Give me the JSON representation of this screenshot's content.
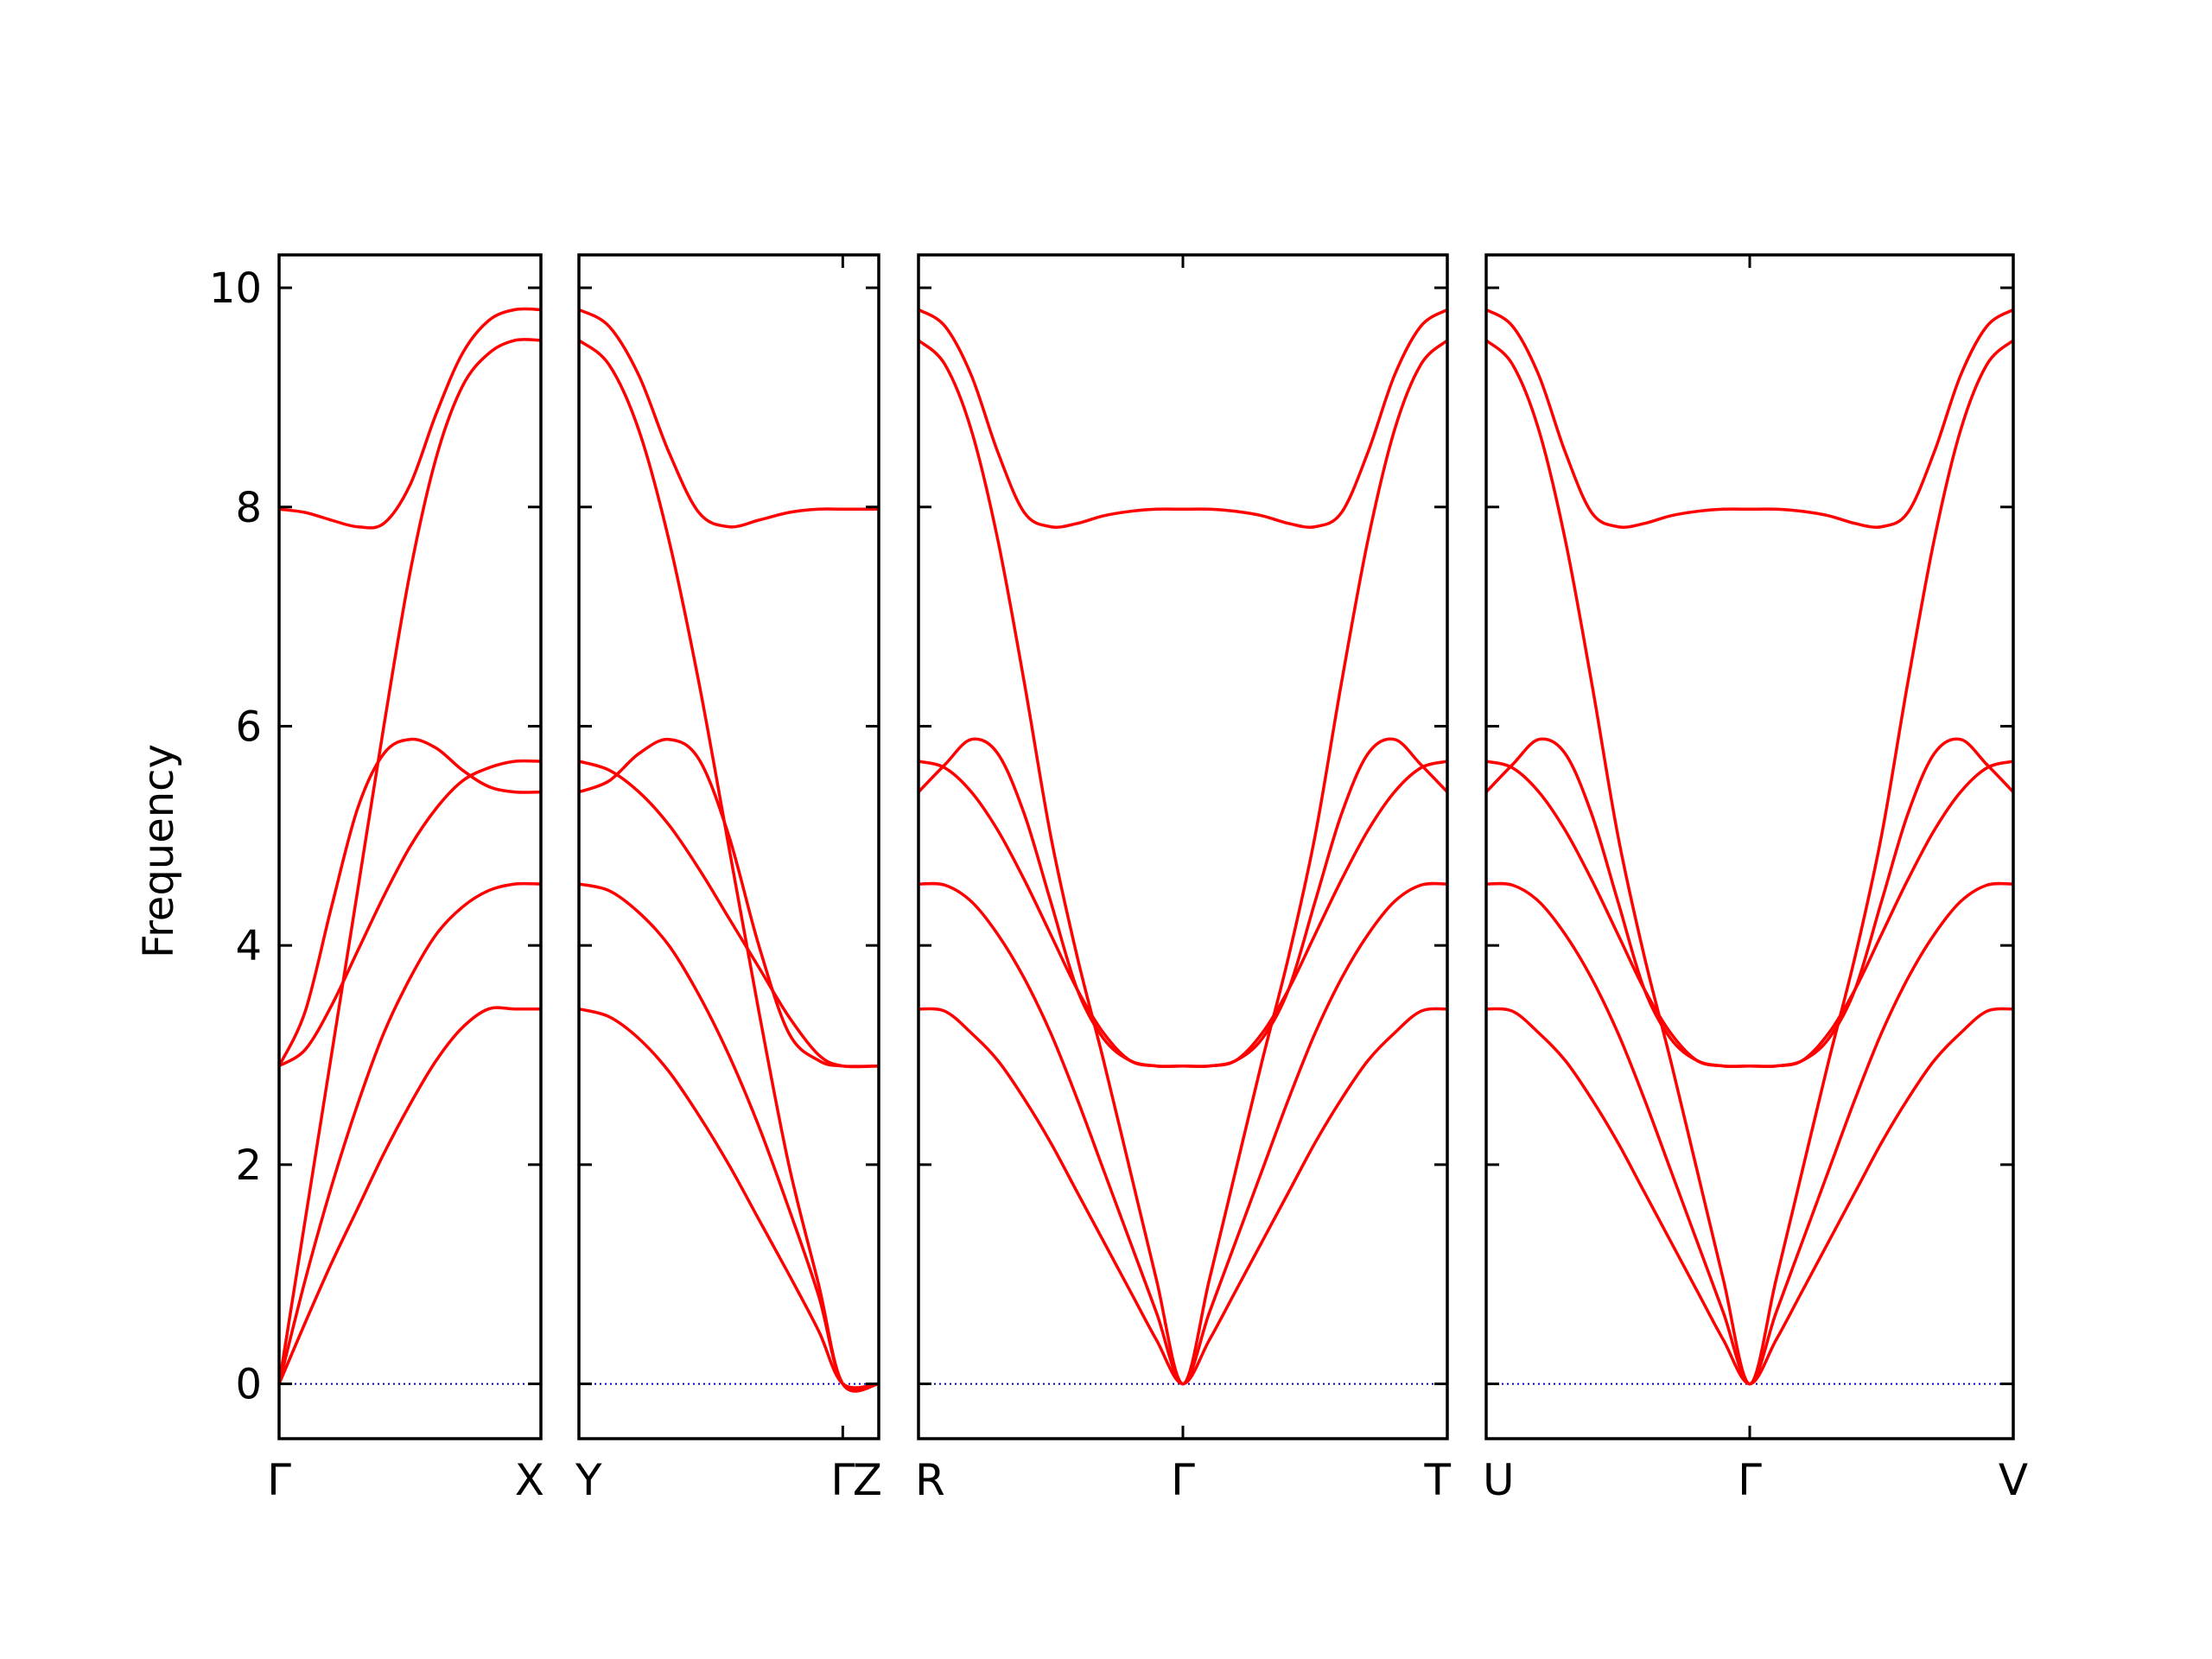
{
  "chart_data": {
    "type": "line",
    "title": "",
    "ylabel": "Frequency",
    "xlabel": "",
    "ylim": [
      -0.5,
      10.3
    ],
    "yticks": [
      0,
      2,
      4,
      6,
      8,
      10
    ],
    "ytick_labels": [
      "0",
      "2",
      "4",
      "6",
      "8",
      "10"
    ],
    "grid": false,
    "band_color": "#ff0000",
    "zero_line_color": "#0000cc",
    "panels": [
      {
        "x_range": [
          0,
          1
        ],
        "ticks": [
          {
            "x": 0,
            "label": "Γ"
          },
          {
            "x": 1,
            "label": "X"
          }
        ],
        "series": [
          {
            "x": [
              0,
              0.1,
              0.2,
              0.3,
              0.4,
              0.5,
              0.6,
              0.7,
              0.8,
              0.9,
              1.0
            ],
            "values": [
              0,
              0.56,
              1.1,
              1.6,
              2.1,
              2.55,
              2.95,
              3.25,
              3.42,
              3.42,
              3.42
            ]
          },
          {
            "x": [
              0,
              0.1,
              0.2,
              0.3,
              0.4,
              0.5,
              0.6,
              0.7,
              0.8,
              0.9,
              1.0
            ],
            "values": [
              0,
              0.95,
              1.8,
              2.55,
              3.2,
              3.7,
              4.1,
              4.35,
              4.5,
              4.56,
              4.56
            ]
          },
          {
            "x": [
              0,
              0.1,
              0.2,
              0.3,
              0.4,
              0.5,
              0.6,
              0.7,
              0.8,
              0.9,
              1.0
            ],
            "values": [
              2.9,
              3.05,
              3.45,
              3.95,
              4.45,
              4.9,
              5.25,
              5.5,
              5.62,
              5.68,
              5.68
            ]
          },
          {
            "x": [
              0,
              0.1,
              0.2,
              0.3,
              0.4,
              0.5,
              0.6,
              0.7,
              0.8,
              0.9,
              1.0
            ],
            "values": [
              2.9,
              3.4,
              4.35,
              5.25,
              5.75,
              5.88,
              5.8,
              5.6,
              5.45,
              5.4,
              5.4
            ]
          },
          {
            "x": [
              0,
              0.1,
              0.2,
              0.3,
              0.4,
              0.5,
              0.6,
              0.7,
              0.8,
              0.9,
              1.0
            ],
            "values": [
              0,
              1.5,
              3.0,
              4.5,
              6.0,
              7.4,
              8.45,
              9.1,
              9.4,
              9.52,
              9.52
            ]
          },
          {
            "x": [
              0,
              0.1,
              0.2,
              0.3,
              0.4,
              0.5,
              0.6,
              0.7,
              0.8,
              0.9,
              1.0
            ],
            "values": [
              7.98,
              7.95,
              7.88,
              7.82,
              7.85,
              8.2,
              8.85,
              9.4,
              9.7,
              9.8,
              9.8
            ]
          }
        ]
      },
      {
        "x_range": [
          0,
          1
        ],
        "ticks": [
          {
            "x": 0,
            "label": "Y"
          },
          {
            "x": 0.88,
            "label": "Γ"
          },
          {
            "x": 1,
            "label": "Z"
          }
        ],
        "series": [
          {
            "x": [
              0,
              0.1,
              0.2,
              0.3,
              0.4,
              0.5,
              0.6,
              0.7,
              0.8,
              0.88,
              1.0
            ],
            "values": [
              3.42,
              3.35,
              3.15,
              2.85,
              2.45,
              2.0,
              1.5,
              1.0,
              0.48,
              0,
              0
            ]
          },
          {
            "x": [
              0,
              0.1,
              0.2,
              0.3,
              0.4,
              0.5,
              0.6,
              0.7,
              0.8,
              0.88,
              1.0
            ],
            "values": [
              4.56,
              4.5,
              4.3,
              4.0,
              3.55,
              3.0,
              2.35,
              1.6,
              0.8,
              0,
              0
            ]
          },
          {
            "x": [
              0,
              0.1,
              0.2,
              0.3,
              0.4,
              0.5,
              0.6,
              0.7,
              0.8,
              0.88,
              1.0
            ],
            "values": [
              5.68,
              5.6,
              5.4,
              5.1,
              4.7,
              4.25,
              3.8,
              3.35,
              3.0,
              2.9,
              2.9
            ]
          },
          {
            "x": [
              0,
              0.1,
              0.2,
              0.3,
              0.4,
              0.5,
              0.6,
              0.7,
              0.8,
              0.88,
              1.0
            ],
            "values": [
              5.4,
              5.5,
              5.75,
              5.88,
              5.7,
              5.0,
              4.0,
              3.2,
              2.95,
              2.9,
              2.9
            ]
          },
          {
            "x": [
              0,
              0.1,
              0.2,
              0.3,
              0.4,
              0.5,
              0.6,
              0.7,
              0.8,
              0.88,
              1.0
            ],
            "values": [
              9.52,
              9.3,
              8.7,
              7.7,
              6.4,
              4.9,
              3.4,
              2.0,
              0.9,
              0,
              0
            ]
          },
          {
            "x": [
              0,
              0.1,
              0.2,
              0.3,
              0.4,
              0.5,
              0.6,
              0.7,
              0.8,
              0.88,
              1.0
            ],
            "values": [
              9.8,
              9.65,
              9.2,
              8.5,
              7.95,
              7.82,
              7.88,
              7.95,
              7.98,
              7.98,
              7.98
            ]
          }
        ]
      },
      {
        "x_range": [
          0,
          2
        ],
        "ticks": [
          {
            "x": 0,
            "label": "R"
          },
          {
            "x": 1,
            "label": "Γ"
          },
          {
            "x": 2,
            "label": "T"
          }
        ],
        "series": [
          {
            "x": [
              0,
              0.1,
              0.2,
              0.3,
              0.4,
              0.5,
              0.6,
              0.7,
              0.8,
              0.9,
              1.0,
              1.1,
              1.2,
              1.3,
              1.4,
              1.5,
              1.6,
              1.7,
              1.8,
              1.9,
              2.0
            ],
            "values": [
              3.42,
              3.4,
              3.2,
              2.95,
              2.6,
              2.2,
              1.75,
              1.3,
              0.85,
              0.4,
              0,
              0.4,
              0.85,
              1.3,
              1.75,
              2.2,
              2.6,
              2.95,
              3.2,
              3.4,
              3.42
            ]
          },
          {
            "x": [
              0,
              0.1,
              0.2,
              0.3,
              0.4,
              0.5,
              0.6,
              0.7,
              0.8,
              0.9,
              1.0,
              1.1,
              1.2,
              1.3,
              1.4,
              1.5,
              1.6,
              1.7,
              1.8,
              1.9,
              2.0
            ],
            "values": [
              4.56,
              4.55,
              4.4,
              4.1,
              3.7,
              3.2,
              2.6,
              1.95,
              1.3,
              0.65,
              0,
              0.65,
              1.3,
              1.95,
              2.6,
              3.2,
              3.7,
              4.1,
              4.4,
              4.55,
              4.56
            ]
          },
          {
            "x": [
              0,
              0.1,
              0.2,
              0.3,
              0.4,
              0.5,
              0.6,
              0.7,
              0.8,
              0.9,
              1.0,
              1.1,
              1.2,
              1.3,
              1.4,
              1.5,
              1.6,
              1.7,
              1.8,
              1.9,
              2.0
            ],
            "values": [
              5.68,
              5.62,
              5.4,
              5.05,
              4.6,
              4.1,
              3.6,
              3.2,
              2.95,
              2.9,
              2.9,
              2.9,
              2.95,
              3.2,
              3.6,
              4.1,
              4.6,
              5.05,
              5.4,
              5.62,
              5.68
            ]
          },
          {
            "x": [
              0,
              0.1,
              0.2,
              0.3,
              0.4,
              0.5,
              0.6,
              0.7,
              0.8,
              0.9,
              1.0,
              1.1,
              1.2,
              1.3,
              1.4,
              1.5,
              1.6,
              1.7,
              1.8,
              1.9,
              2.0
            ],
            "values": [
              5.4,
              5.65,
              5.88,
              5.75,
              5.2,
              4.4,
              3.6,
              3.15,
              2.95,
              2.9,
              2.9,
              2.9,
              2.95,
              3.15,
              3.6,
              4.4,
              5.2,
              5.75,
              5.88,
              5.65,
              5.4
            ]
          },
          {
            "x": [
              0,
              0.1,
              0.2,
              0.3,
              0.4,
              0.5,
              0.6,
              0.7,
              0.8,
              0.9,
              1.0,
              1.1,
              1.2,
              1.3,
              1.4,
              1.5,
              1.6,
              1.7,
              1.8,
              1.9,
              2.0
            ],
            "values": [
              9.52,
              9.3,
              8.7,
              7.7,
              6.4,
              5.0,
              3.9,
              2.95,
              1.95,
              0.95,
              0,
              0.95,
              1.95,
              2.95,
              3.9,
              5.0,
              6.4,
              7.7,
              8.7,
              9.3,
              9.52
            ]
          },
          {
            "x": [
              0,
              0.1,
              0.2,
              0.3,
              0.4,
              0.5,
              0.6,
              0.7,
              0.8,
              0.9,
              1.0,
              1.1,
              1.2,
              1.3,
              1.4,
              1.5,
              1.6,
              1.7,
              1.8,
              1.9,
              2.0
            ],
            "values": [
              9.8,
              9.65,
              9.2,
              8.5,
              7.95,
              7.82,
              7.85,
              7.92,
              7.96,
              7.98,
              7.98,
              7.98,
              7.96,
              7.92,
              7.85,
              7.82,
              7.95,
              8.5,
              9.2,
              9.65,
              9.8
            ]
          }
        ]
      },
      {
        "x_range": [
          0,
          2
        ],
        "ticks": [
          {
            "x": 0,
            "label": "U"
          },
          {
            "x": 1,
            "label": "Γ"
          },
          {
            "x": 2,
            "label": "V"
          }
        ],
        "series": [
          {
            "x": [
              0,
              0.1,
              0.2,
              0.3,
              0.4,
              0.5,
              0.6,
              0.7,
              0.8,
              0.9,
              1.0,
              1.1,
              1.2,
              1.3,
              1.4,
              1.5,
              1.6,
              1.7,
              1.8,
              1.9,
              2.0
            ],
            "values": [
              3.42,
              3.4,
              3.2,
              2.95,
              2.6,
              2.2,
              1.75,
              1.3,
              0.85,
              0.4,
              0,
              0.4,
              0.85,
              1.3,
              1.75,
              2.2,
              2.6,
              2.95,
              3.2,
              3.4,
              3.42
            ]
          },
          {
            "x": [
              0,
              0.1,
              0.2,
              0.3,
              0.4,
              0.5,
              0.6,
              0.7,
              0.8,
              0.9,
              1.0,
              1.1,
              1.2,
              1.3,
              1.4,
              1.5,
              1.6,
              1.7,
              1.8,
              1.9,
              2.0
            ],
            "values": [
              4.56,
              4.55,
              4.4,
              4.1,
              3.7,
              3.2,
              2.6,
              1.95,
              1.3,
              0.65,
              0,
              0.65,
              1.3,
              1.95,
              2.6,
              3.2,
              3.7,
              4.1,
              4.4,
              4.55,
              4.56
            ]
          },
          {
            "x": [
              0,
              0.1,
              0.2,
              0.3,
              0.4,
              0.5,
              0.6,
              0.7,
              0.8,
              0.9,
              1.0,
              1.1,
              1.2,
              1.3,
              1.4,
              1.5,
              1.6,
              1.7,
              1.8,
              1.9,
              2.0
            ],
            "values": [
              5.68,
              5.62,
              5.4,
              5.05,
              4.6,
              4.1,
              3.6,
              3.2,
              2.95,
              2.9,
              2.9,
              2.9,
              2.95,
              3.2,
              3.6,
              4.1,
              4.6,
              5.05,
              5.4,
              5.62,
              5.68
            ]
          },
          {
            "x": [
              0,
              0.1,
              0.2,
              0.3,
              0.4,
              0.5,
              0.6,
              0.7,
              0.8,
              0.9,
              1.0,
              1.1,
              1.2,
              1.3,
              1.4,
              1.5,
              1.6,
              1.7,
              1.8,
              1.9,
              2.0
            ],
            "values": [
              5.4,
              5.65,
              5.88,
              5.75,
              5.2,
              4.4,
              3.6,
              3.15,
              2.95,
              2.9,
              2.9,
              2.9,
              2.95,
              3.15,
              3.6,
              4.4,
              5.2,
              5.75,
              5.88,
              5.65,
              5.4
            ]
          },
          {
            "x": [
              0,
              0.1,
              0.2,
              0.3,
              0.4,
              0.5,
              0.6,
              0.7,
              0.8,
              0.9,
              1.0,
              1.1,
              1.2,
              1.3,
              1.4,
              1.5,
              1.6,
              1.7,
              1.8,
              1.9,
              2.0
            ],
            "values": [
              9.52,
              9.3,
              8.7,
              7.7,
              6.4,
              5.0,
              3.9,
              2.95,
              1.95,
              0.95,
              0,
              0.95,
              1.95,
              2.95,
              3.9,
              5.0,
              6.4,
              7.7,
              8.7,
              9.3,
              9.52
            ]
          },
          {
            "x": [
              0,
              0.1,
              0.2,
              0.3,
              0.4,
              0.5,
              0.6,
              0.7,
              0.8,
              0.9,
              1.0,
              1.1,
              1.2,
              1.3,
              1.4,
              1.5,
              1.6,
              1.7,
              1.8,
              1.9,
              2.0
            ],
            "values": [
              9.8,
              9.65,
              9.2,
              8.5,
              7.95,
              7.82,
              7.85,
              7.92,
              7.96,
              7.98,
              7.98,
              7.98,
              7.96,
              7.92,
              7.85,
              7.82,
              7.95,
              8.5,
              9.2,
              9.65,
              9.8
            ]
          }
        ]
      }
    ]
  }
}
